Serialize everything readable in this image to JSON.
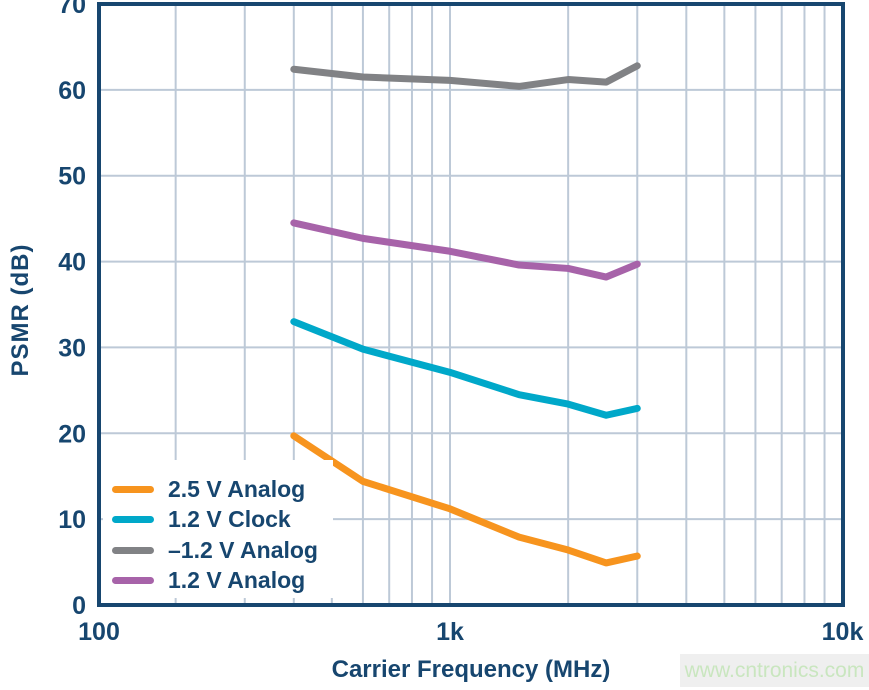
{
  "figure": {
    "background": "#FFFFFF",
    "watermark": {
      "text": "www.cntronics.com",
      "text_color": "#C9E6BF",
      "background": "#EFEFEF"
    }
  },
  "chart_data": {
    "type": "line",
    "title": "",
    "xlabel": "Carrier Frequency (MHz)",
    "ylabel": "PSMR (dB)",
    "x_scale": "log",
    "xlim": [
      100,
      10000
    ],
    "ylim": [
      0,
      70
    ],
    "grid": true,
    "legend_position": "lower-left",
    "axis_color": "#17466F",
    "grid_color": "#BDC9D7",
    "tick_label_color": "#17466F",
    "x_ticks": [
      {
        "value": 100,
        "label": "100"
      },
      {
        "value": 1000,
        "label": "1k"
      },
      {
        "value": 10000,
        "label": "10k"
      }
    ],
    "y_ticks": [
      {
        "value": 0,
        "label": "0"
      },
      {
        "value": 10,
        "label": "10"
      },
      {
        "value": 20,
        "label": "20"
      },
      {
        "value": 30,
        "label": "30"
      },
      {
        "value": 40,
        "label": "40"
      },
      {
        "value": 50,
        "label": "50"
      },
      {
        "value": 60,
        "label": "60"
      },
      {
        "value": 70,
        "label": "70"
      }
    ],
    "x": [
      400,
      600,
      1000,
      1500,
      2000,
      2500,
      3000
    ],
    "series": [
      {
        "name": "2.5 V Analog",
        "color": "#F7941E",
        "values": [
          19.7,
          14.4,
          11.2,
          7.9,
          6.4,
          4.9,
          5.7
        ]
      },
      {
        "name": "1.2 V Clock",
        "color": "#00A8C9",
        "values": [
          33.0,
          29.8,
          27.1,
          24.5,
          23.4,
          22.1,
          22.9
        ]
      },
      {
        "name": "–1.2 V Analog",
        "color": "#818285",
        "values": [
          62.4,
          61.5,
          61.1,
          60.4,
          61.2,
          60.9,
          62.8
        ]
      },
      {
        "name": "1.2 V Analog",
        "color": "#A763A9",
        "values": [
          44.5,
          42.7,
          41.2,
          39.6,
          39.2,
          38.2,
          39.7
        ]
      }
    ]
  }
}
